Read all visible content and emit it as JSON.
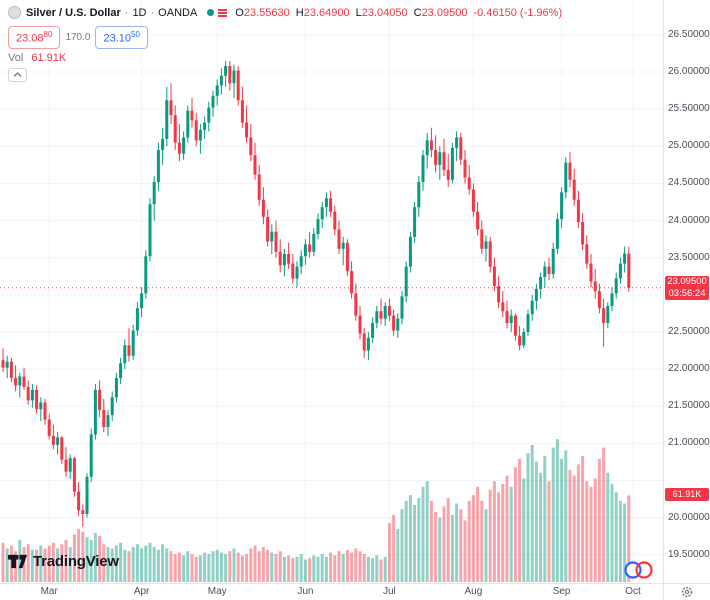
{
  "header": {
    "symbol": "Silver / U.S. Dollar",
    "separator": "·",
    "interval": "1D",
    "exchange": "OANDA",
    "ohlc": {
      "o_label": "O",
      "o": "23.55630",
      "h_label": "H",
      "h": "23.64900",
      "l_label": "L",
      "l": "23.04050",
      "c_label": "C",
      "c": "23.09500",
      "change": "-0.46150 (-1.96%)"
    },
    "sell": {
      "main": "23.08",
      "sup": "80"
    },
    "spread": "170.0",
    "buy": {
      "main": "23.10",
      "sup": "50"
    },
    "vol_label": "Vol",
    "vol_value": "61.91K"
  },
  "price_axis_badges": {
    "last_price": "23.09500",
    "countdown": "03:56:24",
    "volume": "61.91K"
  },
  "footer": {
    "logo_text": "TradingView"
  },
  "colors": {
    "up": "#089981",
    "down": "#f23645",
    "vol_up": "rgba(8,153,129,0.45)",
    "vol_down": "rgba(242,54,69,0.45)",
    "grid": "#f0f3fa",
    "accent_blue": "#2962ff"
  },
  "chart_data": {
    "type": "candlestick",
    "title": "Silver / U.S. Dollar · 1D · OANDA",
    "last_price": 23.095,
    "last_volume_k": 61.91,
    "price_axis": {
      "top": 26.97,
      "bottom": 19.12,
      "grid_values": [
        19.5,
        20.0,
        20.5,
        21.0,
        21.5,
        22.0,
        22.5,
        23.0,
        23.5,
        24.0,
        24.5,
        25.0,
        25.5,
        26.0,
        26.5
      ],
      "ticks": [
        {
          "value": 26.5,
          "label": "26.50000"
        },
        {
          "value": 26.0,
          "label": "26.00000"
        },
        {
          "value": 25.5,
          "label": "25.50000"
        },
        {
          "value": 25.0,
          "label": "25.00000"
        },
        {
          "value": 24.5,
          "label": "24.50000"
        },
        {
          "value": 24.0,
          "label": "24.00000"
        },
        {
          "value": 23.5,
          "label": "23.50000"
        },
        {
          "value": 22.5,
          "label": "22.50000"
        },
        {
          "value": 22.0,
          "label": "22.00000"
        },
        {
          "value": 21.5,
          "label": "21.50000"
        },
        {
          "value": 21.0,
          "label": "21.00000"
        },
        {
          "value": 20.0,
          "label": "20.00000"
        },
        {
          "value": 19.5,
          "label": "19.50000"
        }
      ]
    },
    "time_axis": {
      "ticks": [
        {
          "label": "Mar",
          "index": 11
        },
        {
          "label": "Apr",
          "index": 33
        },
        {
          "label": "May",
          "index": 51
        },
        {
          "label": "Jun",
          "index": 72
        },
        {
          "label": "Jul",
          "index": 92
        },
        {
          "label": "Aug",
          "index": 112
        },
        {
          "label": "Sep",
          "index": 133
        },
        {
          "label": "Oct",
          "index": 150
        }
      ]
    },
    "candles_format": [
      "open",
      "high",
      "low",
      "close",
      "volume_k"
    ],
    "candles": [
      [
        22.12,
        22.28,
        21.96,
        22.02,
        28
      ],
      [
        22.02,
        22.18,
        21.88,
        22.1,
        24
      ],
      [
        22.1,
        22.15,
        21.82,
        21.88,
        26
      ],
      [
        21.88,
        22.05,
        21.7,
        21.78,
        22
      ],
      [
        21.78,
        21.95,
        21.62,
        21.9,
        30
      ],
      [
        21.9,
        22.02,
        21.72,
        21.76,
        25
      ],
      [
        21.76,
        21.85,
        21.52,
        21.58,
        27
      ],
      [
        21.58,
        21.8,
        21.48,
        21.72,
        23
      ],
      [
        21.72,
        21.78,
        21.4,
        21.46,
        23
      ],
      [
        21.46,
        21.62,
        21.3,
        21.55,
        26
      ],
      [
        21.55,
        21.6,
        21.25,
        21.32,
        24
      ],
      [
        21.32,
        21.4,
        21.05,
        21.1,
        26
      ],
      [
        21.1,
        21.25,
        20.92,
        20.98,
        28
      ],
      [
        20.98,
        21.15,
        20.85,
        21.08,
        24
      ],
      [
        21.08,
        21.1,
        20.72,
        20.78,
        27
      ],
      [
        20.78,
        20.95,
        20.55,
        20.62,
        30
      ],
      [
        20.62,
        20.85,
        20.52,
        20.8,
        25
      ],
      [
        20.8,
        20.82,
        20.28,
        20.35,
        34
      ],
      [
        20.35,
        20.48,
        20.02,
        20.1,
        38
      ],
      [
        20.1,
        20.18,
        19.88,
        20.05,
        36
      ],
      [
        20.05,
        20.6,
        20.0,
        20.55,
        32
      ],
      [
        20.55,
        21.2,
        20.48,
        21.12,
        30
      ],
      [
        21.12,
        21.8,
        21.05,
        21.72,
        35
      ],
      [
        21.72,
        21.85,
        21.35,
        21.45,
        33
      ],
      [
        21.45,
        21.6,
        21.15,
        21.22,
        27
      ],
      [
        21.22,
        21.45,
        21.1,
        21.38,
        25
      ],
      [
        21.38,
        21.7,
        21.3,
        21.62,
        24
      ],
      [
        21.62,
        21.95,
        21.55,
        21.88,
        26
      ],
      [
        21.88,
        22.15,
        21.8,
        22.08,
        28
      ],
      [
        22.08,
        22.4,
        22.0,
        22.32,
        23
      ],
      [
        22.32,
        22.55,
        22.1,
        22.18,
        22
      ],
      [
        22.18,
        22.6,
        22.12,
        22.52,
        25
      ],
      [
        22.52,
        22.9,
        22.45,
        22.82,
        27
      ],
      [
        22.82,
        23.1,
        22.7,
        23.02,
        24
      ],
      [
        23.02,
        23.6,
        22.95,
        23.52,
        26
      ],
      [
        23.52,
        24.3,
        23.45,
        24.22,
        28
      ],
      [
        24.22,
        24.6,
        24.0,
        24.52,
        25
      ],
      [
        24.52,
        25.05,
        24.4,
        24.95,
        23
      ],
      [
        24.95,
        25.25,
        24.75,
        25.1,
        27
      ],
      [
        25.1,
        25.8,
        25.0,
        25.62,
        24
      ],
      [
        25.62,
        25.85,
        25.3,
        25.42,
        22
      ],
      [
        25.42,
        25.55,
        24.95,
        25.05,
        20
      ],
      [
        25.05,
        25.3,
        24.8,
        24.9,
        21
      ],
      [
        24.9,
        25.2,
        24.82,
        25.12,
        19
      ],
      [
        25.12,
        25.55,
        25.05,
        25.48,
        22
      ],
      [
        25.48,
        25.65,
        25.25,
        25.35,
        20
      ],
      [
        25.35,
        25.45,
        25.0,
        25.08,
        18
      ],
      [
        25.08,
        25.3,
        24.9,
        25.22,
        19
      ],
      [
        25.22,
        25.4,
        25.1,
        25.32,
        21
      ],
      [
        25.32,
        25.6,
        25.2,
        25.52,
        20
      ],
      [
        25.52,
        25.75,
        25.4,
        25.68,
        22
      ],
      [
        25.68,
        25.9,
        25.55,
        25.82,
        23
      ],
      [
        25.82,
        26.05,
        25.7,
        25.95,
        21
      ],
      [
        25.95,
        26.15,
        25.8,
        26.08,
        20
      ],
      [
        26.08,
        26.15,
        25.75,
        25.85,
        22
      ],
      [
        25.85,
        26.1,
        25.65,
        26.02,
        24
      ],
      [
        26.02,
        26.08,
        25.55,
        25.62,
        21
      ],
      [
        25.62,
        25.8,
        25.25,
        25.32,
        19
      ],
      [
        25.32,
        25.55,
        25.05,
        25.12,
        20
      ],
      [
        25.12,
        25.3,
        24.8,
        24.88,
        24
      ],
      [
        24.88,
        25.05,
        24.55,
        24.62,
        26
      ],
      [
        24.62,
        24.75,
        24.2,
        24.28,
        22
      ],
      [
        24.28,
        24.45,
        23.95,
        24.05,
        25
      ],
      [
        24.05,
        24.15,
        23.65,
        23.72,
        23
      ],
      [
        23.72,
        23.95,
        23.55,
        23.85,
        21
      ],
      [
        23.85,
        24.0,
        23.5,
        23.58,
        20
      ],
      [
        23.58,
        23.75,
        23.3,
        23.4,
        22
      ],
      [
        23.4,
        23.62,
        23.25,
        23.55,
        18
      ],
      [
        23.55,
        23.7,
        23.35,
        23.42,
        19
      ],
      [
        23.42,
        23.55,
        23.15,
        23.22,
        17
      ],
      [
        23.22,
        23.45,
        23.1,
        23.38,
        18
      ],
      [
        23.38,
        23.6,
        23.28,
        23.52,
        20
      ],
      [
        23.52,
        23.75,
        23.4,
        23.68,
        16
      ],
      [
        23.68,
        23.85,
        23.5,
        23.58,
        17
      ],
      [
        23.58,
        23.9,
        23.52,
        23.82,
        19
      ],
      [
        23.82,
        24.1,
        23.75,
        24.02,
        18
      ],
      [
        24.02,
        24.25,
        23.9,
        24.18,
        20
      ],
      [
        24.18,
        24.38,
        24.05,
        24.3,
        18
      ],
      [
        24.3,
        24.4,
        24.05,
        24.12,
        21
      ],
      [
        24.12,
        24.2,
        23.8,
        23.88,
        19
      ],
      [
        23.88,
        24.0,
        23.55,
        23.62,
        22
      ],
      [
        23.62,
        23.78,
        23.4,
        23.7,
        20
      ],
      [
        23.7,
        23.75,
        23.25,
        23.32,
        23
      ],
      [
        23.32,
        23.45,
        22.95,
        23.02,
        21
      ],
      [
        23.02,
        23.15,
        22.65,
        22.72,
        24
      ],
      [
        22.72,
        22.85,
        22.4,
        22.48,
        22
      ],
      [
        22.48,
        22.55,
        22.15,
        22.25,
        20
      ],
      [
        22.25,
        22.5,
        22.12,
        22.42,
        18
      ],
      [
        22.42,
        22.7,
        22.35,
        22.62,
        17
      ],
      [
        22.62,
        22.85,
        22.55,
        22.78,
        19
      ],
      [
        22.78,
        22.95,
        22.6,
        22.68,
        16
      ],
      [
        22.68,
        22.9,
        22.58,
        22.85,
        18
      ],
      [
        22.85,
        22.95,
        22.65,
        22.72,
        42
      ],
      [
        22.72,
        22.8,
        22.45,
        22.52,
        48
      ],
      [
        22.52,
        22.75,
        22.42,
        22.68,
        38
      ],
      [
        22.68,
        23.05,
        22.6,
        22.98,
        52
      ],
      [
        22.98,
        23.45,
        22.9,
        23.38,
        58
      ],
      [
        23.38,
        23.85,
        23.3,
        23.78,
        62
      ],
      [
        23.78,
        24.25,
        23.7,
        24.18,
        55
      ],
      [
        24.18,
        24.6,
        24.05,
        24.52,
        60
      ],
      [
        24.52,
        24.95,
        24.4,
        24.88,
        68
      ],
      [
        24.88,
        25.18,
        24.7,
        25.08,
        72
      ],
      [
        25.08,
        25.25,
        24.85,
        24.95,
        58
      ],
      [
        24.95,
        25.15,
        24.65,
        24.75,
        50
      ],
      [
        24.75,
        25.0,
        24.55,
        24.92,
        46
      ],
      [
        24.92,
        25.1,
        24.6,
        24.68,
        54
      ],
      [
        24.68,
        24.9,
        24.45,
        24.55,
        60
      ],
      [
        24.55,
        25.05,
        24.5,
        24.98,
        48
      ],
      [
        24.98,
        25.2,
        24.8,
        25.12,
        56
      ],
      [
        25.12,
        25.18,
        24.75,
        24.82,
        52
      ],
      [
        24.82,
        24.95,
        24.5,
        24.58,
        44
      ],
      [
        24.58,
        24.75,
        24.35,
        24.42,
        58
      ],
      [
        24.42,
        24.5,
        24.05,
        24.12,
        62
      ],
      [
        24.12,
        24.25,
        23.8,
        23.88,
        68
      ],
      [
        23.88,
        24.0,
        23.55,
        23.62,
        58
      ],
      [
        23.62,
        23.8,
        23.45,
        23.72,
        52
      ],
      [
        23.72,
        23.78,
        23.3,
        23.38,
        66
      ],
      [
        23.38,
        23.5,
        23.05,
        23.12,
        72
      ],
      [
        23.12,
        23.25,
        22.82,
        22.9,
        64
      ],
      [
        22.9,
        23.05,
        22.7,
        22.78,
        70
      ],
      [
        22.78,
        22.92,
        22.55,
        22.62,
        76
      ],
      [
        22.62,
        22.8,
        22.5,
        22.72,
        68
      ],
      [
        22.72,
        22.75,
        22.38,
        22.45,
        82
      ],
      [
        22.45,
        22.58,
        22.25,
        22.32,
        88
      ],
      [
        22.32,
        22.55,
        22.28,
        22.5,
        74
      ],
      [
        22.5,
        22.8,
        22.45,
        22.74,
        92
      ],
      [
        22.74,
        23.0,
        22.65,
        22.92,
        98
      ],
      [
        22.92,
        23.15,
        22.8,
        23.08,
        86
      ],
      [
        23.08,
        23.3,
        22.95,
        23.24,
        78
      ],
      [
        23.24,
        23.45,
        23.1,
        23.38,
        90
      ],
      [
        23.38,
        23.5,
        23.2,
        23.28,
        72
      ],
      [
        23.28,
        23.7,
        23.22,
        23.62,
        96
      ],
      [
        23.62,
        24.1,
        23.55,
        24.02,
        102
      ],
      [
        24.02,
        24.45,
        23.9,
        24.38,
        88
      ],
      [
        24.38,
        24.85,
        24.3,
        24.78,
        94
      ],
      [
        24.78,
        24.92,
        24.45,
        24.55,
        80
      ],
      [
        24.55,
        24.7,
        24.2,
        24.28,
        76
      ],
      [
        24.28,
        24.4,
        23.9,
        23.98,
        84
      ],
      [
        23.98,
        24.1,
        23.6,
        23.68,
        90
      ],
      [
        23.68,
        23.8,
        23.35,
        23.42,
        72
      ],
      [
        23.42,
        23.55,
        23.1,
        23.18,
        68
      ],
      [
        23.18,
        23.35,
        22.95,
        23.05,
        74
      ],
      [
        23.05,
        23.15,
        22.75,
        22.82,
        88
      ],
      [
        22.82,
        22.95,
        22.3,
        22.62,
        96
      ],
      [
        22.62,
        22.9,
        22.55,
        22.85,
        78
      ],
      [
        22.85,
        23.1,
        22.78,
        23.02,
        70
      ],
      [
        23.02,
        23.3,
        22.95,
        23.22,
        64
      ],
      [
        23.22,
        23.5,
        23.15,
        23.42,
        58
      ],
      [
        23.42,
        23.65,
        23.3,
        23.5563,
        56
      ],
      [
        23.5563,
        23.649,
        23.0405,
        23.095,
        61.91
      ]
    ]
  }
}
